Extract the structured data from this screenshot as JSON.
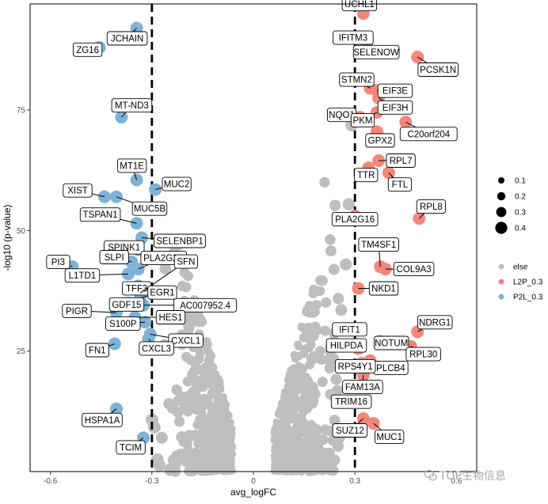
{
  "chart_data": {
    "type": "scatter",
    "title": "",
    "xlabel": "avg_logFC",
    "ylabel": "-log10 (p-value)",
    "xlim": [
      -0.66,
      0.66
    ],
    "ylim": [
      0,
      97
    ],
    "xticks": [
      "-0.6",
      "-0.3",
      "0",
      "0.3",
      "0.6"
    ],
    "xtick_values": [
      -0.6,
      -0.3,
      0,
      0.3,
      0.6
    ],
    "yticks": [
      "25",
      "50",
      "75"
    ],
    "ytick_values": [
      25,
      50,
      75
    ],
    "vlines": [
      -0.3,
      0.3
    ],
    "grid": false,
    "legend_position": "right",
    "size_legend": {
      "labels": [
        "0.1",
        "0.2",
        "0.3",
        "0.4"
      ],
      "values": [
        0.1,
        0.2,
        0.3,
        0.4
      ]
    },
    "color_legend": {
      "entries": [
        {
          "label": "else",
          "color": "#bebebe"
        },
        {
          "label": "L2P_0.3",
          "color": "#f4877b"
        },
        {
          "label": "P2L_0.3",
          "color": "#7fb2d6"
        }
      ]
    },
    "series": [
      {
        "name": "P2L_0.3",
        "color": "#7fb2d6",
        "points": [
          {
            "x": -0.345,
            "y": 92,
            "label": "JCHAIN"
          },
          {
            "x": -0.455,
            "y": 88,
            "label": "ZG16"
          },
          {
            "x": -0.39,
            "y": 73.5,
            "label": "MT-ND3"
          },
          {
            "x": -0.345,
            "y": 60.5,
            "label": "MT1E"
          },
          {
            "x": -0.29,
            "y": 58.5,
            "label": "MUC2"
          },
          {
            "x": -0.44,
            "y": 57,
            "label": "XIST"
          },
          {
            "x": -0.405,
            "y": 57,
            "label": "MUC5B"
          },
          {
            "x": -0.345,
            "y": 51.5,
            "label": "TSPAN1"
          },
          {
            "x": -0.33,
            "y": 48.5,
            "label": "SELENBP1"
          },
          {
            "x": -0.34,
            "y": 46,
            "label": "SPINK1"
          },
          {
            "x": -0.36,
            "y": 43.5,
            "label": "SLPI"
          },
          {
            "x": -0.34,
            "y": 42,
            "label": "PLA2G2A"
          },
          {
            "x": -0.535,
            "y": 42.5,
            "label": "PI3"
          },
          {
            "x": -0.37,
            "y": 41,
            "label": "L1TD1"
          },
          {
            "x": -0.34,
            "y": 38.5,
            "label": "TFF3"
          },
          {
            "x": -0.335,
            "y": 37,
            "label": "SFN"
          },
          {
            "x": -0.335,
            "y": 36,
            "label": "EGR1"
          },
          {
            "x": -0.325,
            "y": 34.5,
            "label": "AC007952.4"
          },
          {
            "x": -0.37,
            "y": 35,
            "label": "GDF15"
          },
          {
            "x": -0.405,
            "y": 33,
            "label": "PIGR"
          },
          {
            "x": -0.35,
            "y": 32,
            "label": "HES1"
          },
          {
            "x": -0.32,
            "y": 31,
            "label": "S100P"
          },
          {
            "x": -0.305,
            "y": 28.5,
            "label": "CXCL1"
          },
          {
            "x": -0.31,
            "y": 27.5,
            "label": "CXCL3"
          },
          {
            "x": -0.41,
            "y": 26.5,
            "label": "FN1"
          },
          {
            "x": -0.405,
            "y": 13,
            "label": "HSPA1A"
          },
          {
            "x": -0.325,
            "y": 7,
            "label": "TCIM"
          }
        ]
      },
      {
        "name": "L2P_0.3",
        "color": "#f4877b",
        "points": [
          {
            "x": 0.325,
            "y": 95,
            "label": "UCHL1"
          },
          {
            "x": 0.325,
            "y": 90,
            "label": "IFITM3"
          },
          {
            "x": 0.335,
            "y": 88.5,
            "label": "SELENOW"
          },
          {
            "x": 0.485,
            "y": 86,
            "label": "PCSK1N"
          },
          {
            "x": 0.345,
            "y": 79.5,
            "label": "STMN2"
          },
          {
            "x": 0.365,
            "y": 79,
            "label": "EIF3E"
          },
          {
            "x": 0.37,
            "y": 77.5,
            "label": "EIF3H"
          },
          {
            "x": 0.315,
            "y": 73.5,
            "label": "NQO1"
          },
          {
            "x": 0.365,
            "y": 74.5,
            "label": "PKM"
          },
          {
            "x": 0.45,
            "y": 72.5,
            "label": "C20orf204"
          },
          {
            "x": 0.365,
            "y": 70.5,
            "label": "GPX2"
          },
          {
            "x": 0.37,
            "y": 64.5,
            "label": "RPL7"
          },
          {
            "x": 0.34,
            "y": 63,
            "label": "TTR"
          },
          {
            "x": 0.4,
            "y": 62,
            "label": "FTL"
          },
          {
            "x": 0.49,
            "y": 52.5,
            "label": "RPL8"
          },
          {
            "x": 0.3,
            "y": 53,
            "label": "PLA2G16"
          },
          {
            "x": 0.375,
            "y": 42.5,
            "label": "TM4SF1"
          },
          {
            "x": 0.39,
            "y": 42,
            "label": "COL9A3"
          },
          {
            "x": 0.31,
            "y": 38,
            "label": "NKD1"
          },
          {
            "x": 0.31,
            "y": 29.5,
            "label": "IFIT1"
          },
          {
            "x": 0.485,
            "y": 29,
            "label": "NDRG1"
          },
          {
            "x": 0.375,
            "y": 27,
            "label": "NOTUM"
          },
          {
            "x": 0.465,
            "y": 26,
            "label": "RPL30"
          },
          {
            "x": 0.31,
            "y": 25.5,
            "label": "HILPDA"
          },
          {
            "x": 0.345,
            "y": 23,
            "label": "PLCB4"
          },
          {
            "x": 0.32,
            "y": 22.5,
            "label": "RPS4Y1"
          },
          {
            "x": 0.325,
            "y": 20,
            "label": "FAM13A"
          },
          {
            "x": 0.315,
            "y": 14.5,
            "label": "TRIM16"
          },
          {
            "x": 0.325,
            "y": 11,
            "label": "SUZ12"
          },
          {
            "x": 0.355,
            "y": 10,
            "label": "MUC1"
          }
        ]
      }
    ],
    "background_series": {
      "name": "else",
      "color": "#bebebe"
    }
  },
  "watermark": {
    "text": "TOP生物信息"
  }
}
